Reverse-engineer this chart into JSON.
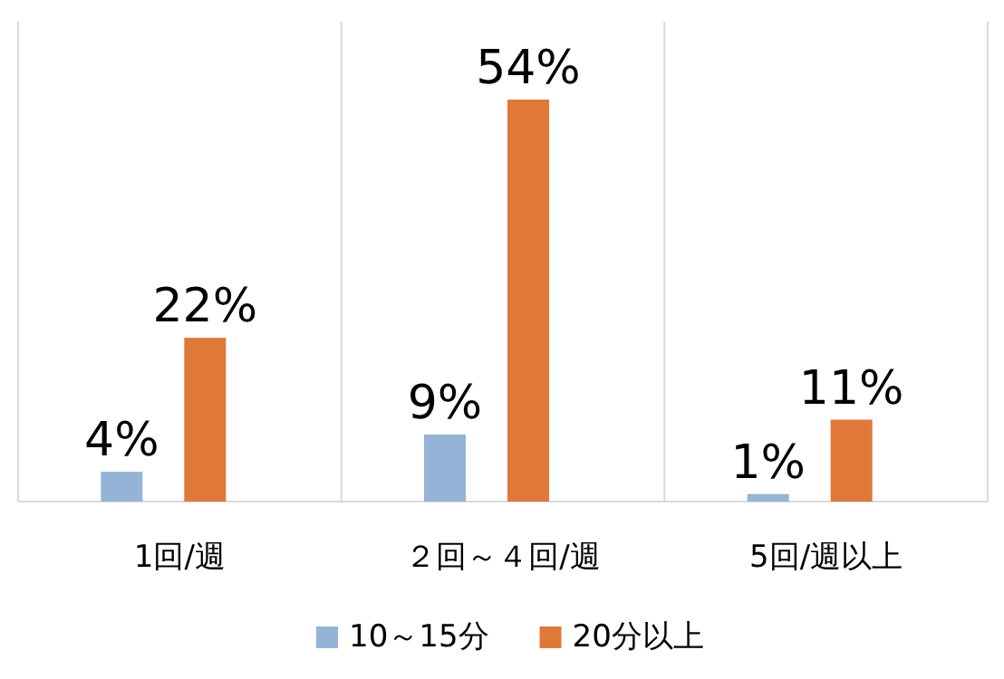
{
  "chart_data": {
    "type": "bar",
    "categories": [
      "1回/週",
      "２回～４回/週",
      "5回/週以上"
    ],
    "series": [
      {
        "name": "10～15分",
        "color": "#95b3d7",
        "values": [
          4,
          9,
          1
        ],
        "value_labels": [
          "4%",
          "9%",
          "1%"
        ]
      },
      {
        "name": "20分以上",
        "color": "#e0783a",
        "values": [
          22,
          54,
          11
        ],
        "value_labels": [
          "22%",
          "54%",
          "11%"
        ]
      }
    ],
    "grid": "x",
    "legend": "bottom"
  }
}
